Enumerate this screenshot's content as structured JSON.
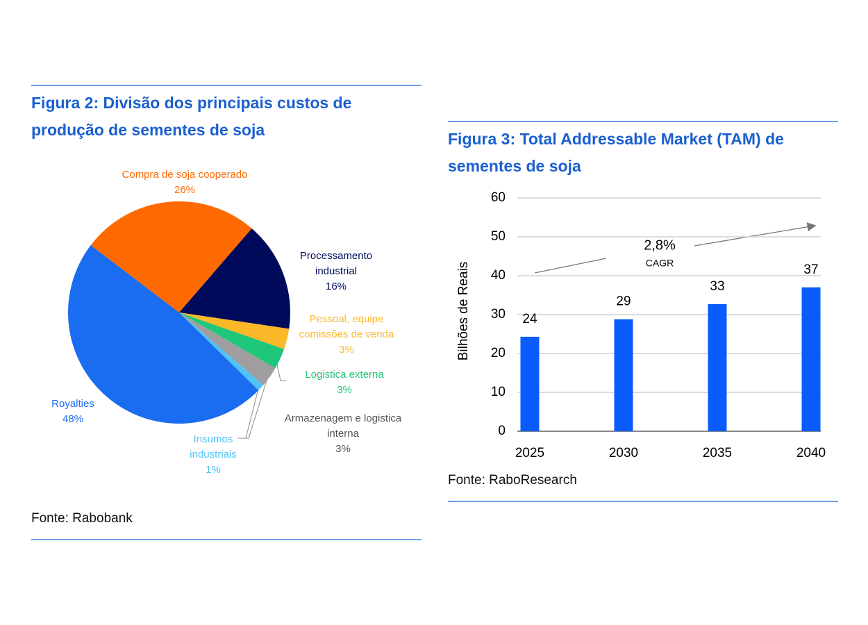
{
  "chart_data": [
    {
      "type": "pie",
      "title": "Figura 2: Divisão dos principais custos de produção de sementes de soja",
      "categories": [
        "Compra de soja cooperado",
        "Processamento industrial",
        "Pessoal, equipe comissões de venda",
        "Logistica externa",
        "Armazenagem e logistica interna",
        "Insumos industriais",
        "Royalties"
      ],
      "values": [
        26,
        16,
        3,
        3,
        3,
        1,
        48
      ],
      "value_labels": [
        "26%",
        "16%",
        "3%",
        "3%",
        "3%",
        "1%",
        "48%"
      ],
      "colors": [
        "#ff6a00",
        "#000a5a",
        "#fbb829",
        "#1fc77a",
        "#9e9e9e",
        "#4ec3f7",
        "#1a6cf0"
      ],
      "source": "Fonte: Rabobank"
    },
    {
      "type": "bar",
      "title": "Figura 3: Total Addressable Market (TAM) de sementes de soja",
      "categories": [
        "2025",
        "2030",
        "2035",
        "2040"
      ],
      "values": [
        24.3,
        28.8,
        32.7,
        37
      ],
      "value_labels": [
        "24",
        "29",
        "33",
        "37"
      ],
      "color": "#0a5cff",
      "ylabel": "Bilhões de Reais",
      "ylim": [
        0,
        60
      ],
      "yticks": [
        0,
        10,
        20,
        30,
        40,
        50,
        60
      ],
      "grid": true,
      "annotations": [
        "2,8%",
        "CAGR"
      ],
      "source": "Fonte: RaboResearch"
    }
  ]
}
